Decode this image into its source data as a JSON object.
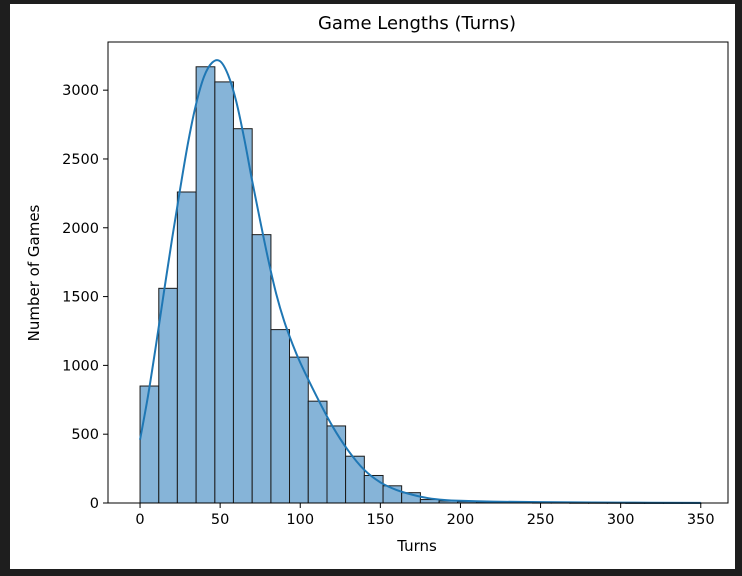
{
  "chart_data": {
    "type": "bar",
    "title": "Game Lengths (Turns)",
    "xlabel": "Turns",
    "ylabel": "Number of Games",
    "xlim": [
      -20,
      367
    ],
    "ylim": [
      0,
      3350
    ],
    "xticks": [
      0,
      50,
      100,
      150,
      200,
      250,
      300,
      350
    ],
    "yticks": [
      0,
      500,
      1000,
      1500,
      2000,
      2500,
      3000
    ],
    "grid": false,
    "bar_color": "#86b4d8",
    "bar_edge_color": "#1a1a1a",
    "kde_color": "#1f77b4",
    "bins": [
      {
        "x0": 0,
        "x1": 11.7,
        "count": 850
      },
      {
        "x0": 11.7,
        "x1": 23.3,
        "count": 1560
      },
      {
        "x0": 23.3,
        "x1": 35,
        "count": 2260
      },
      {
        "x0": 35,
        "x1": 46.7,
        "count": 3170
      },
      {
        "x0": 46.7,
        "x1": 58.3,
        "count": 3060
      },
      {
        "x0": 58.3,
        "x1": 70,
        "count": 2720
      },
      {
        "x0": 70,
        "x1": 81.7,
        "count": 1950
      },
      {
        "x0": 81.7,
        "x1": 93.3,
        "count": 1260
      },
      {
        "x0": 93.3,
        "x1": 105,
        "count": 1060
      },
      {
        "x0": 105,
        "x1": 116.7,
        "count": 740
      },
      {
        "x0": 116.7,
        "x1": 128.3,
        "count": 560
      },
      {
        "x0": 128.3,
        "x1": 140,
        "count": 340
      },
      {
        "x0": 140,
        "x1": 151.7,
        "count": 200
      },
      {
        "x0": 151.7,
        "x1": 163.3,
        "count": 125
      },
      {
        "x0": 163.3,
        "x1": 175,
        "count": 75
      },
      {
        "x0": 175,
        "x1": 186.7,
        "count": 25
      },
      {
        "x0": 186.7,
        "x1": 198.3,
        "count": 15
      },
      {
        "x0": 198.3,
        "x1": 210,
        "count": 10
      },
      {
        "x0": 210,
        "x1": 221.7,
        "count": 8
      },
      {
        "x0": 221.7,
        "x1": 233.3,
        "count": 5
      },
      {
        "x0": 233.3,
        "x1": 245,
        "count": 4
      },
      {
        "x0": 245,
        "x1": 256.7,
        "count": 3
      },
      {
        "x0": 256.7,
        "x1": 268.3,
        "count": 3
      },
      {
        "x0": 268.3,
        "x1": 280,
        "count": 2
      },
      {
        "x0": 280,
        "x1": 291.7,
        "count": 2
      },
      {
        "x0": 291.7,
        "x1": 303.3,
        "count": 2
      },
      {
        "x0": 303.3,
        "x1": 315,
        "count": 1
      },
      {
        "x0": 315,
        "x1": 326.7,
        "count": 1
      },
      {
        "x0": 326.7,
        "x1": 338.3,
        "count": 1
      },
      {
        "x0": 338.3,
        "x1": 350,
        "count": 1
      }
    ],
    "kde_curve": [
      {
        "x": 0,
        "y": 460
      },
      {
        "x": 5,
        "y": 780
      },
      {
        "x": 10,
        "y": 1150
      },
      {
        "x": 15,
        "y": 1540
      },
      {
        "x": 20,
        "y": 1920
      },
      {
        "x": 25,
        "y": 2280
      },
      {
        "x": 30,
        "y": 2620
      },
      {
        "x": 35,
        "y": 2900
      },
      {
        "x": 40,
        "y": 3100
      },
      {
        "x": 45,
        "y": 3200
      },
      {
        "x": 50,
        "y": 3210
      },
      {
        "x": 55,
        "y": 3110
      },
      {
        "x": 60,
        "y": 2920
      },
      {
        "x": 65,
        "y": 2650
      },
      {
        "x": 70,
        "y": 2340
      },
      {
        "x": 75,
        "y": 2050
      },
      {
        "x": 80,
        "y": 1770
      },
      {
        "x": 85,
        "y": 1520
      },
      {
        "x": 90,
        "y": 1320
      },
      {
        "x": 95,
        "y": 1160
      },
      {
        "x": 100,
        "y": 1020
      },
      {
        "x": 110,
        "y": 780
      },
      {
        "x": 120,
        "y": 560
      },
      {
        "x": 130,
        "y": 380
      },
      {
        "x": 140,
        "y": 240
      },
      {
        "x": 150,
        "y": 150
      },
      {
        "x": 160,
        "y": 95
      },
      {
        "x": 170,
        "y": 60
      },
      {
        "x": 180,
        "y": 35
      },
      {
        "x": 190,
        "y": 22
      },
      {
        "x": 200,
        "y": 16
      },
      {
        "x": 220,
        "y": 10
      },
      {
        "x": 250,
        "y": 6
      },
      {
        "x": 300,
        "y": 3
      },
      {
        "x": 350,
        "y": 1
      }
    ]
  }
}
